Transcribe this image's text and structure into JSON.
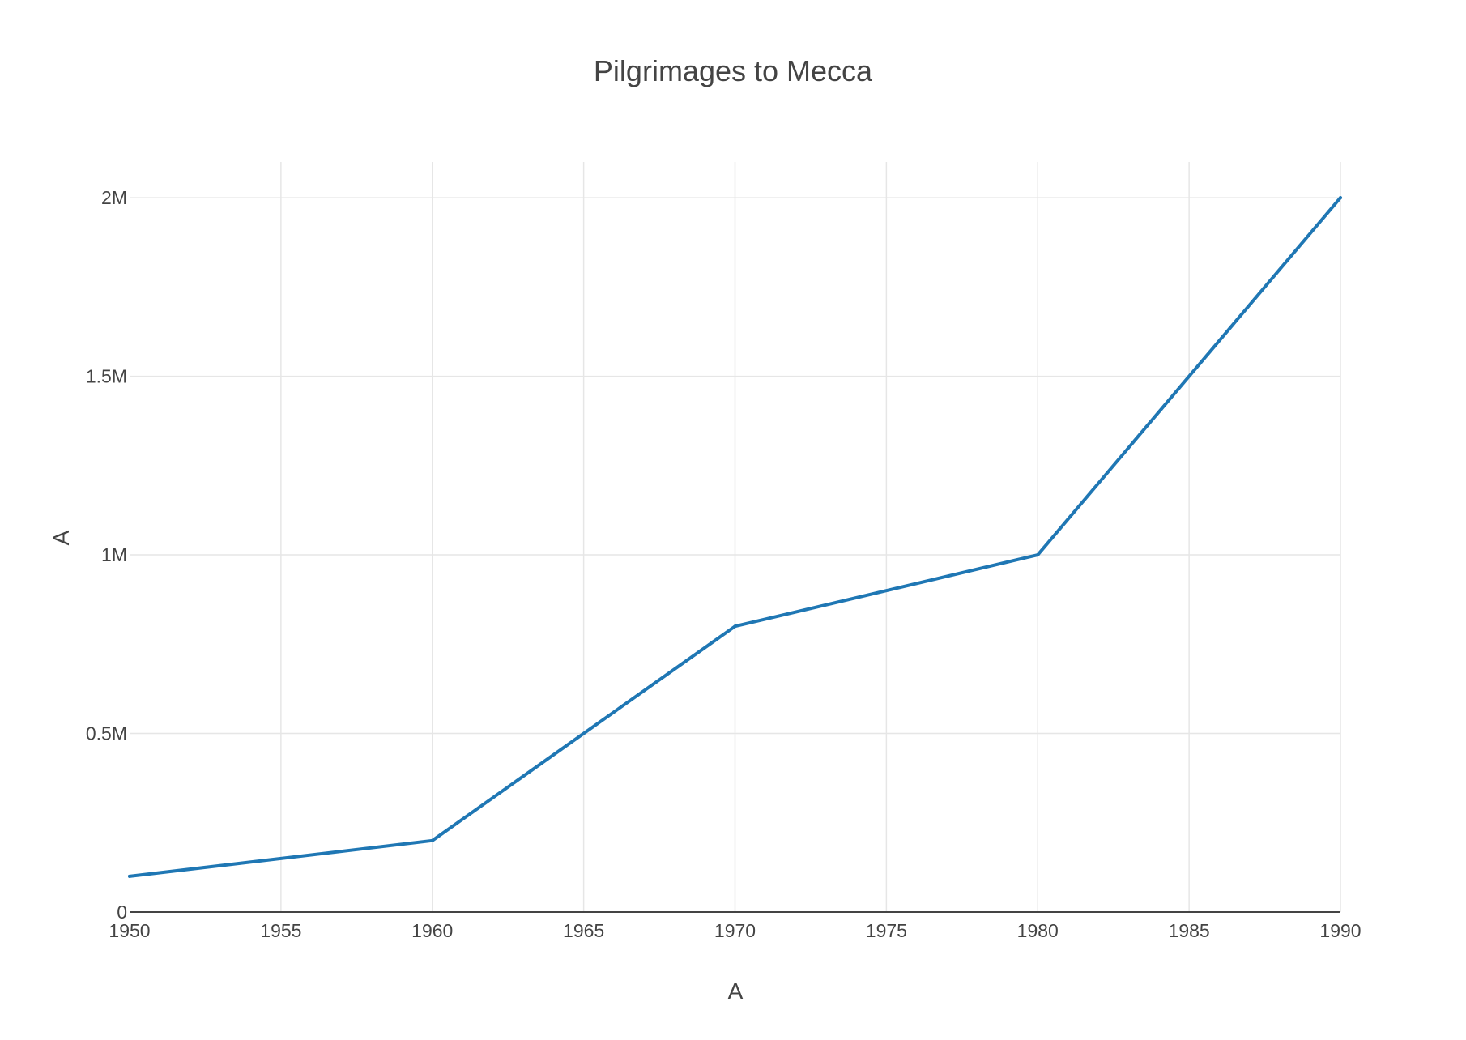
{
  "chart_data": {
    "type": "line",
    "title": "Pilgrimages to Mecca",
    "xlabel": "A",
    "ylabel": "A",
    "xlim": [
      1950,
      1990
    ],
    "ylim": [
      0,
      2100000
    ],
    "x_ticks": [
      1950,
      1955,
      1960,
      1965,
      1970,
      1975,
      1980,
      1985,
      1990
    ],
    "x_tick_labels": [
      "1950",
      "1955",
      "1960",
      "1965",
      "1970",
      "1975",
      "1980",
      "1985",
      "1990"
    ],
    "y_ticks": [
      0,
      500000,
      1000000,
      1500000,
      2000000
    ],
    "y_tick_labels": [
      "0",
      "0.5M",
      "1M",
      "1.5M",
      "2M"
    ],
    "grid": true,
    "series": [
      {
        "name": "A",
        "color": "#1f77b4",
        "x": [
          1950,
          1960,
          1970,
          1980,
          1990
        ],
        "y": [
          100000,
          200000,
          800000,
          1000000,
          2000000
        ]
      }
    ]
  }
}
